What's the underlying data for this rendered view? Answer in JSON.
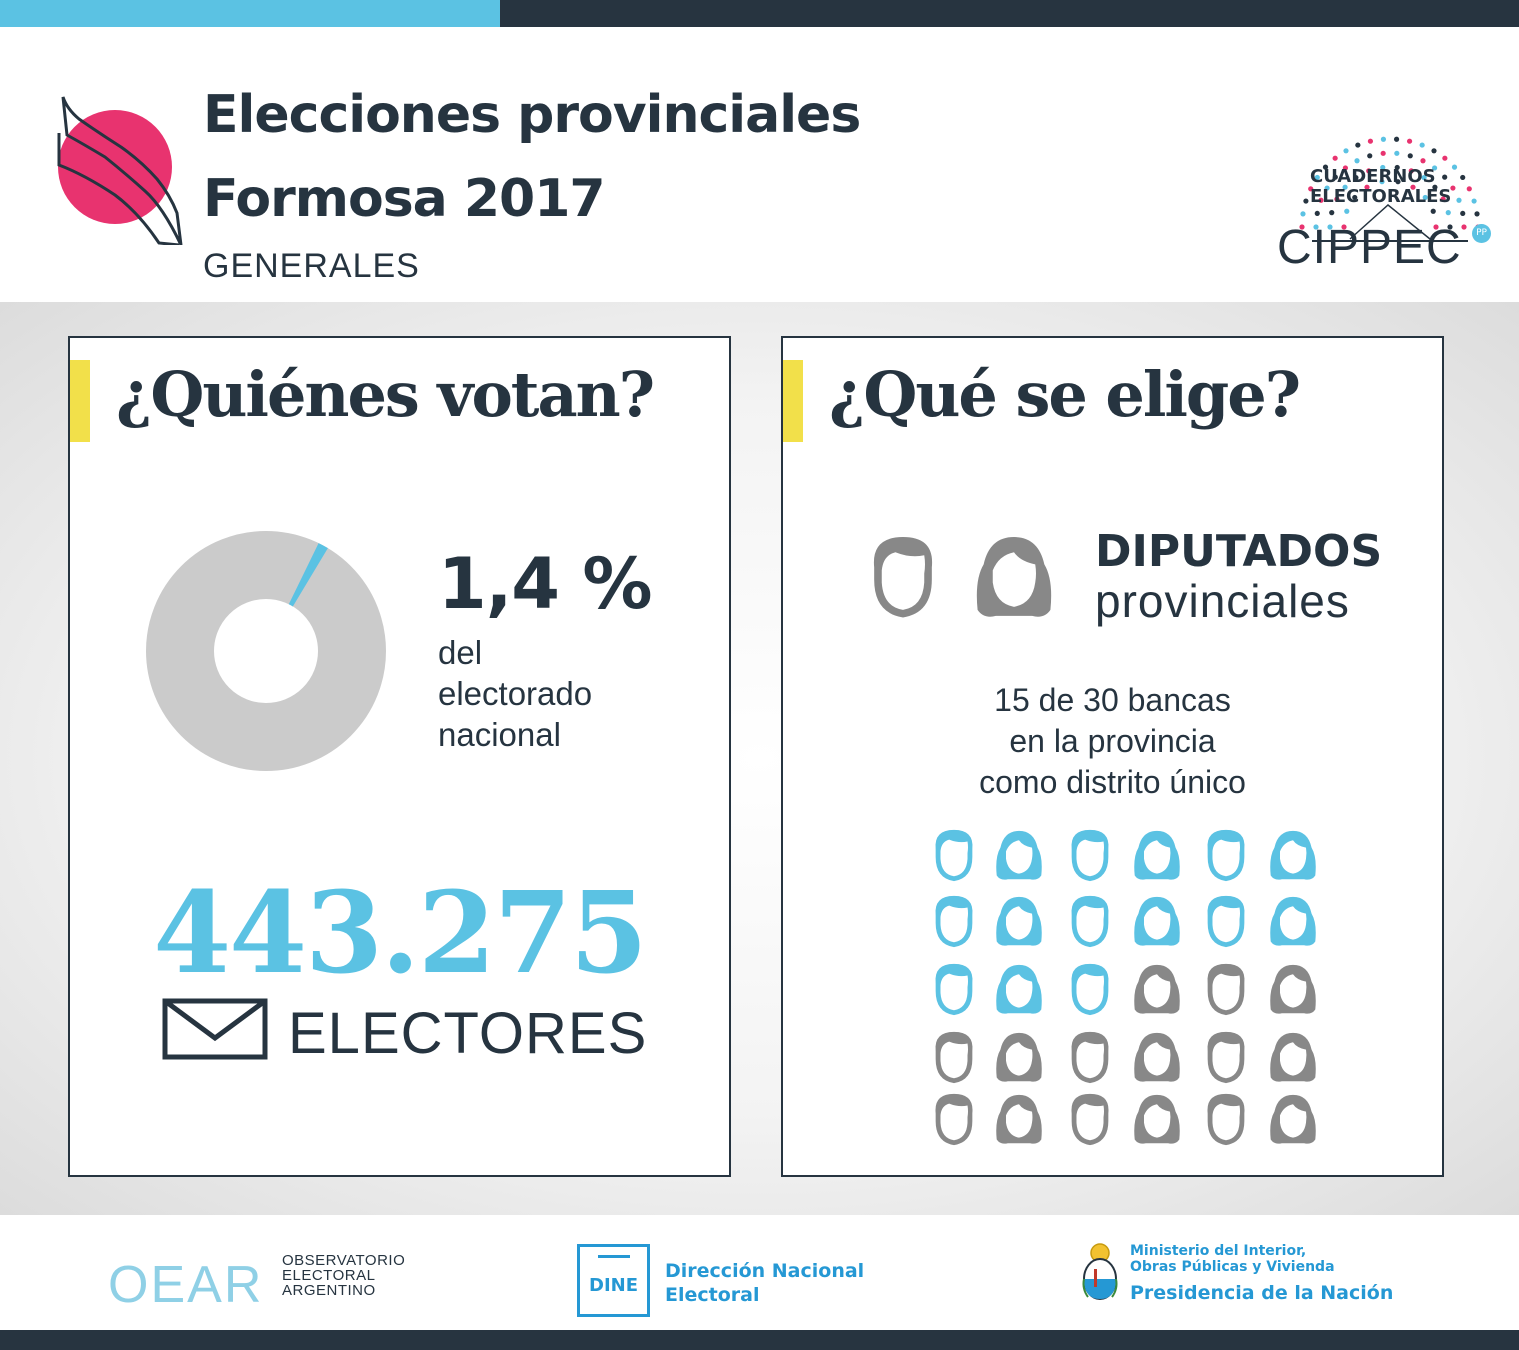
{
  "header": {
    "title_line1": "Elecciones provinciales",
    "title_line2": "Formosa 2017",
    "subtitle": "GENERALES",
    "logo_line1": "CUADERNOS",
    "logo_line2": "ELECTORALES",
    "org": "CIPPEC",
    "org_badge": "PP"
  },
  "left_panel": {
    "heading": "¿Quiénes votan?",
    "percent": "1,4 %",
    "percent_value": 1.4,
    "percent_desc_1": "del",
    "percent_desc_2": "electorado",
    "percent_desc_3": "nacional",
    "electors_number": "443.275",
    "electors_label": "ELECTORES"
  },
  "right_panel": {
    "heading": "¿Qué se elige?",
    "office_title": "DIPUTADOS",
    "office_sub": "provinciales",
    "desc_1": "15 de 30 bancas",
    "desc_2": "en la provincia",
    "desc_3": "como distrito único",
    "seats_elected": 15,
    "seats_total": 30
  },
  "footer": {
    "oear": "OEAR",
    "oear_sub_1": "OBSERVATORIO",
    "oear_sub_2": "ELECTORAL",
    "oear_sub_3": "ARGENTINO",
    "dine": "DINE",
    "dine_name_1": "Dirección Nacional",
    "dine_name_2": "Electoral",
    "ministerio_1": "Ministerio del Interior,",
    "ministerio_2": "Obras Públicas y Vivienda",
    "presidencia": "Presidencia de la Nación"
  },
  "colors": {
    "dark": "#263440",
    "accent_blue": "#5bc2e3",
    "pink": "#e8336f",
    "yellow": "#f2e04a",
    "gray": "#888888",
    "donut_gray": "#cbcbcb"
  }
}
